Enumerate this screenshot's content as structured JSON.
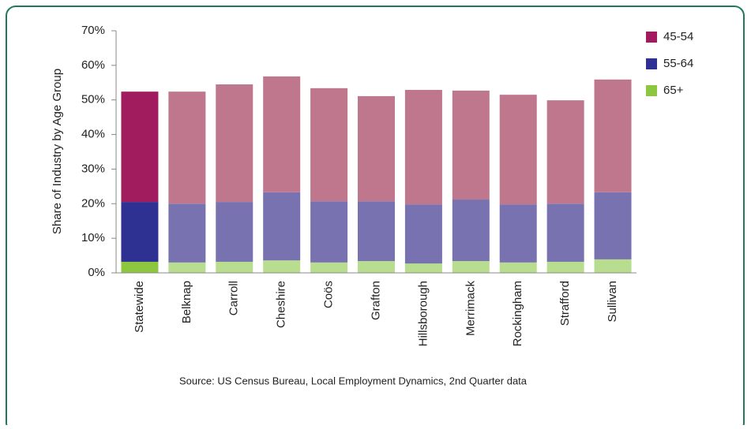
{
  "chart_data": {
    "type": "stacked_bar",
    "y_label": "Share of Industry by Age Group",
    "source": "Source: US Census Bureau, Local Employment Dynamics, 2nd Quarter data",
    "categories": [
      "Statewide",
      "Belknap",
      "Carroll",
      "Cheshire",
      "Coös",
      "Grafton",
      "Hillsborough",
      "Merrimack",
      "Rockingham",
      "Strafford",
      "Sullivan"
    ],
    "series": [
      {
        "name": "65+",
        "color": "#8dc63f",
        "colors": [
          "#8dc63f",
          "#b8dd8e",
          "#b8dd8e",
          "#b8dd8e",
          "#b8dd8e",
          "#b8dd8e",
          "#b8dd8e",
          "#b8dd8e",
          "#b8dd8e",
          "#b8dd8e",
          "#b8dd8e"
        ],
        "values": [
          3.2,
          3.0,
          3.2,
          3.6,
          3.0,
          3.4,
          2.7,
          3.4,
          3.0,
          3.2,
          3.9
        ]
      },
      {
        "name": "55-64",
        "color": "#2e3192",
        "colors": [
          "#2e3192",
          "#7873b0",
          "#7873b0",
          "#7873b0",
          "#7873b0",
          "#7873b0",
          "#7873b0",
          "#7873b0",
          "#7873b0",
          "#7873b0",
          "#7873b0"
        ],
        "values": [
          17.3,
          17.0,
          17.3,
          19.7,
          17.7,
          17.3,
          17.1,
          17.8,
          16.8,
          16.8,
          19.4
        ]
      },
      {
        "name": "45-54",
        "color": "#a01c5e",
        "colors": [
          "#a01c5e",
          "#bf778e",
          "#bf778e",
          "#bf778e",
          "#bf778e",
          "#bf778e",
          "#bf778e",
          "#bf778e",
          "#bf778e",
          "#bf778e",
          "#bf778e"
        ],
        "values": [
          31.9,
          32.4,
          34.0,
          33.5,
          32.7,
          30.4,
          33.1,
          31.5,
          31.7,
          29.9,
          32.6
        ]
      }
    ],
    "ylim": [
      0,
      70
    ],
    "yticks": [
      {
        "value": 0,
        "label": "0%"
      },
      {
        "value": 10,
        "label": "10%"
      },
      {
        "value": 20,
        "label": "20%"
      },
      {
        "value": 30,
        "label": "30%"
      },
      {
        "value": 40,
        "label": "40%"
      },
      {
        "value": 50,
        "label": "50%"
      },
      {
        "value": 60,
        "label": "60%"
      },
      {
        "value": 70,
        "label": "70%"
      }
    ],
    "legend": "right"
  }
}
